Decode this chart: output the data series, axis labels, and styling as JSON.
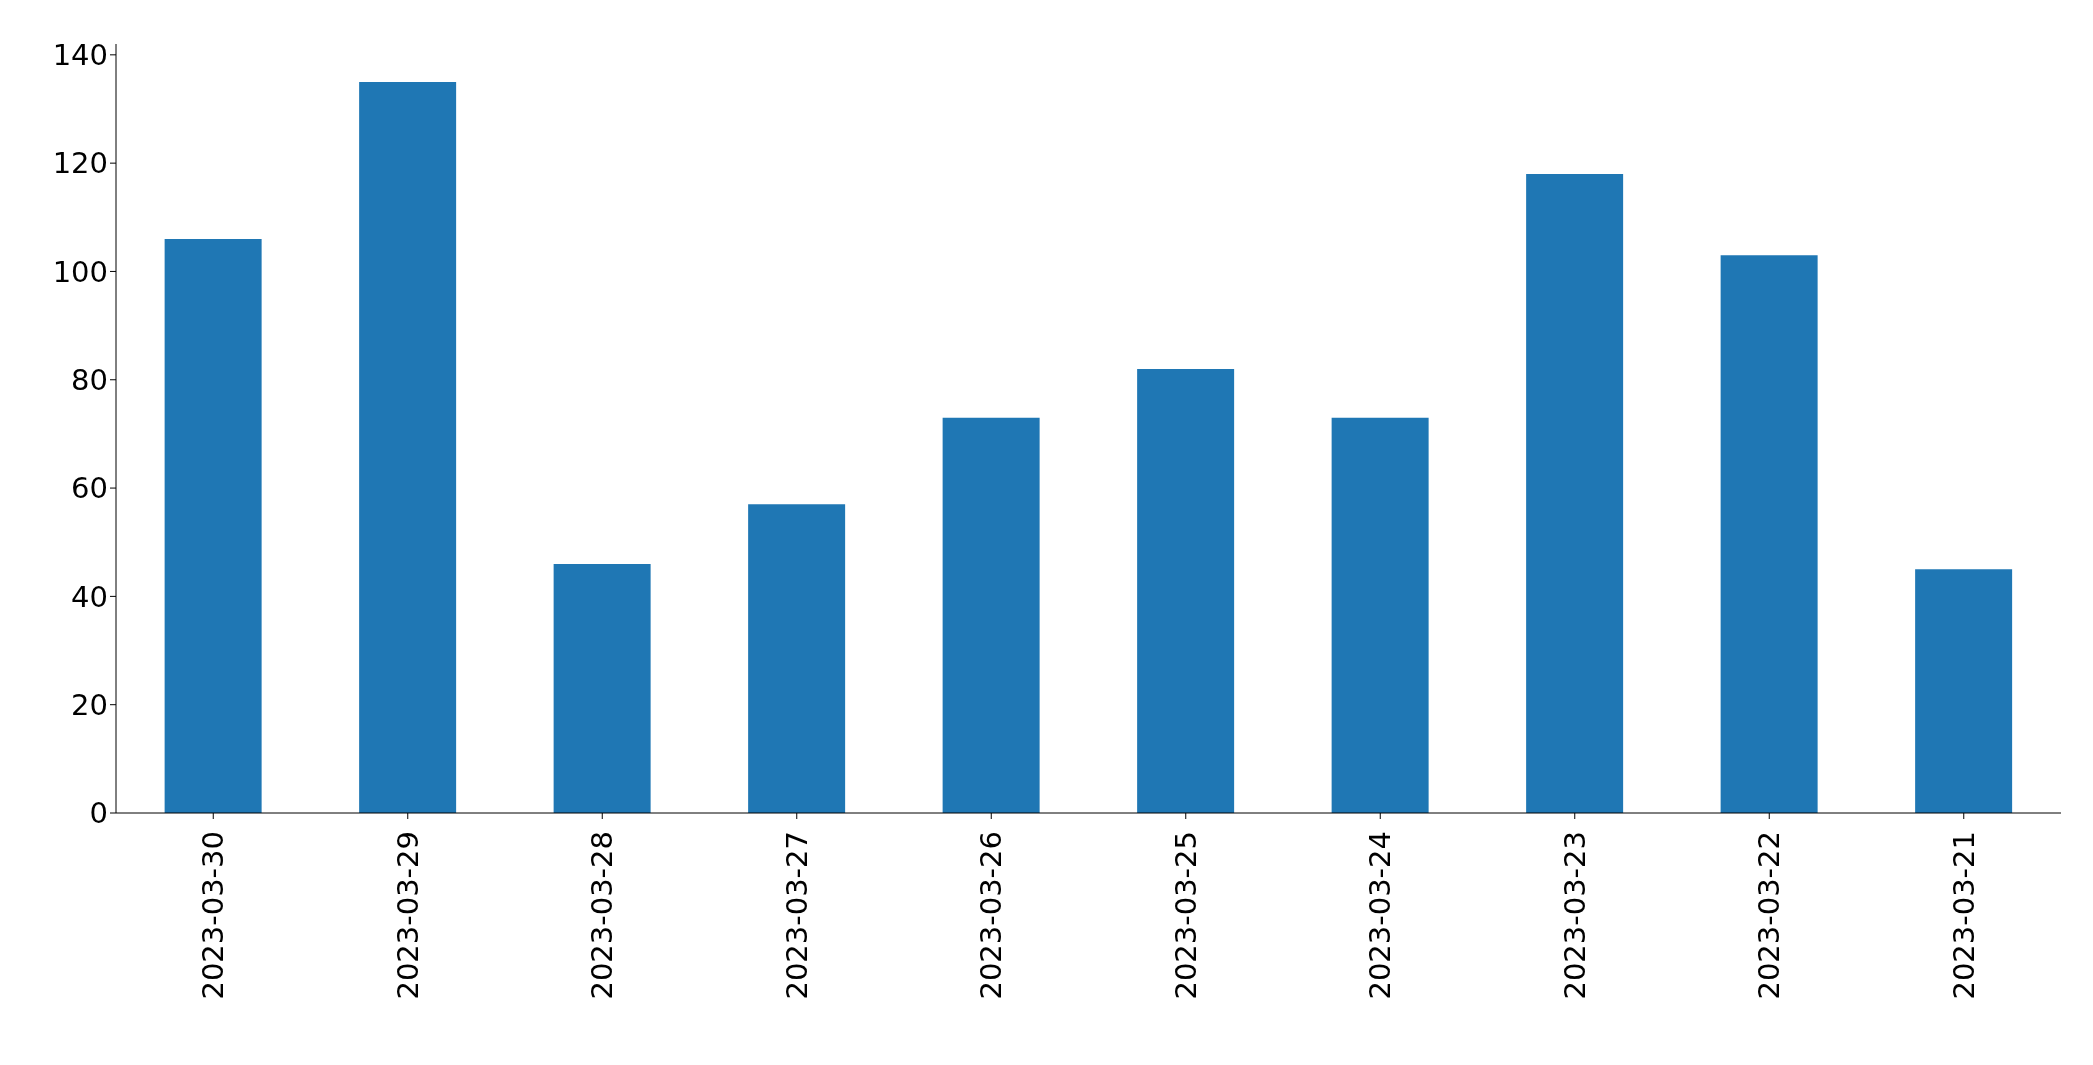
{
  "chart_data": {
    "type": "bar",
    "categories": [
      "2023-03-30",
      "2023-03-29",
      "2023-03-28",
      "2023-03-27",
      "2023-03-26",
      "2023-03-25",
      "2023-03-24",
      "2023-03-23",
      "2023-03-22",
      "2023-03-21"
    ],
    "values": [
      106,
      135,
      46,
      57,
      73,
      82,
      73,
      118,
      103,
      45
    ],
    "color": "#1f77b4",
    "ylim": [
      0,
      142
    ],
    "yticks": [
      0,
      20,
      40,
      60,
      80,
      100,
      120,
      140
    ]
  }
}
